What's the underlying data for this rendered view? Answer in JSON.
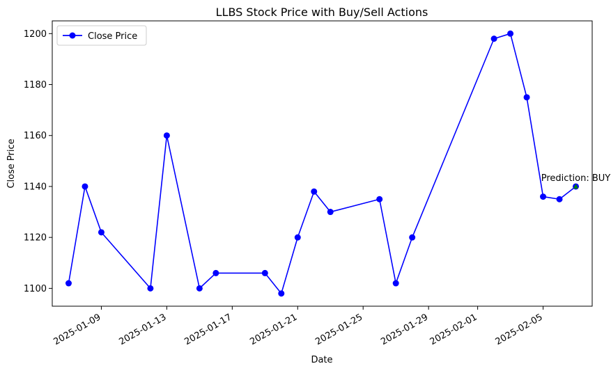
{
  "chart_data": {
    "type": "line",
    "title": "LLBS Stock Price with Buy/Sell Actions",
    "xlabel": "Date",
    "ylabel": "Close Price",
    "xlim": [
      "2025-01-06",
      "2025-02-08"
    ],
    "ylim": [
      1093,
      1205
    ],
    "grid": false,
    "legend": {
      "placement": "top-left",
      "entries": [
        "Close Price"
      ]
    },
    "x_ticks": [
      "2025-01-09",
      "2025-01-13",
      "2025-01-17",
      "2025-01-21",
      "2025-01-25",
      "2025-01-29",
      "2025-02-01",
      "2025-02-05"
    ],
    "y_ticks": [
      1100,
      1120,
      1140,
      1160,
      1180,
      1200
    ],
    "series": [
      {
        "name": "Close Price",
        "color": "#0000ff",
        "marker": "circle",
        "x": [
          "2025-01-07",
          "2025-01-08",
          "2025-01-09",
          "2025-01-12",
          "2025-01-13",
          "2025-01-15",
          "2025-01-16",
          "2025-01-19",
          "2025-01-20",
          "2025-01-21",
          "2025-01-22",
          "2025-01-23",
          "2025-01-26",
          "2025-01-27",
          "2025-01-28",
          "2025-02-02",
          "2025-02-03",
          "2025-02-04",
          "2025-02-05",
          "2025-02-06",
          "2025-02-07"
        ],
        "y": [
          1102,
          1140,
          1122,
          1100,
          1160,
          1100,
          1106,
          1106,
          1098,
          1120,
          1138,
          1130,
          1135,
          1102,
          1120,
          1198,
          1200,
          1175,
          1136,
          1135,
          1140
        ]
      }
    ],
    "annotations": [
      {
        "x": "2025-02-07",
        "y": 1140,
        "text": "Prediction: BUY",
        "marker_color": "#008000"
      }
    ]
  }
}
